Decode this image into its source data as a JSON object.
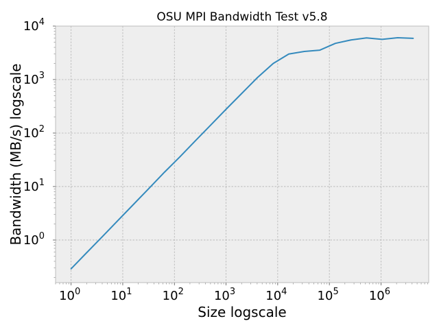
{
  "chart_data": {
    "type": "line",
    "title": "OSU MPI Bandwidth Test v5.8",
    "xlabel": "Size logscale",
    "ylabel": "Bandwidth (MB/s) logscale",
    "xscale": "log",
    "yscale": "log",
    "xlim": [
      0.5,
      8388608
    ],
    "ylim": [
      0.16,
      10000
    ],
    "grid": true,
    "legend": "none",
    "colors": {
      "line": "#348abd",
      "plot_background": "#eeeeee",
      "grid": "#b2b2b2",
      "axes_edge": "#bcbcbc"
    },
    "x_ticks": [
      {
        "value": 1,
        "base": "10",
        "exp": "0"
      },
      {
        "value": 10,
        "base": "10",
        "exp": "1"
      },
      {
        "value": 100,
        "base": "10",
        "exp": "2"
      },
      {
        "value": 1000,
        "base": "10",
        "exp": "3"
      },
      {
        "value": 10000,
        "base": "10",
        "exp": "4"
      },
      {
        "value": 100000,
        "base": "10",
        "exp": "5"
      },
      {
        "value": 1000000,
        "base": "10",
        "exp": "6"
      }
    ],
    "y_ticks": [
      {
        "value": 1,
        "base": "10",
        "exp": "0"
      },
      {
        "value": 10,
        "base": "10",
        "exp": "1"
      },
      {
        "value": 100,
        "base": "10",
        "exp": "2"
      },
      {
        "value": 1000,
        "base": "10",
        "exp": "3"
      },
      {
        "value": 10000,
        "base": "10",
        "exp": "4"
      }
    ],
    "series": [
      {
        "x": [
          1,
          2,
          4,
          8,
          16,
          32,
          64,
          128,
          256,
          512,
          1024,
          2048,
          4096,
          8192,
          16384,
          32768,
          65536,
          131072,
          262144,
          524288,
          1048576,
          2097152,
          4194304
        ],
        "y": [
          0.29,
          0.58,
          1.15,
          2.3,
          4.6,
          9.2,
          18.5,
          36,
          72,
          143,
          285,
          560,
          1100,
          2000,
          3000,
          3350,
          3550,
          4750,
          5500,
          6000,
          5650,
          6050,
          5900
        ]
      }
    ]
  }
}
